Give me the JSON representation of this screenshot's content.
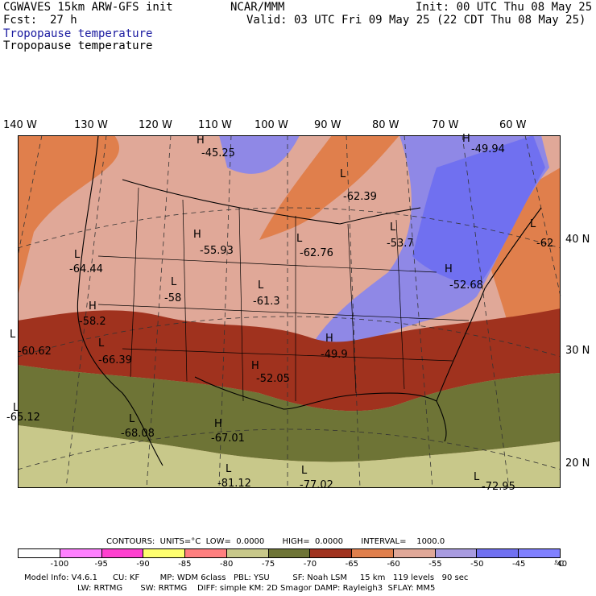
{
  "header": {
    "model": "CGWAVES 15km ARW-GFS init",
    "org": "NCAR/MMM",
    "init": "Init: 00 UTC Thu 08 May 25",
    "fcst_label": "Fcst:",
    "fcst_value": "27 h",
    "valid": "Valid: 03 UTC Fri 09 May 25 (22 CDT Thu 08 May 25)",
    "field_blue": "Tropopause temperature",
    "field_black": "Tropopause temperature"
  },
  "longitudes": [
    "140 W",
    "130 W",
    "120 W",
    "110 W",
    "100 W",
    "90 W",
    "80 W",
    "70 W",
    "60 W"
  ],
  "latitudes": [
    "40 N",
    "30 N",
    "20 N"
  ],
  "map_labels": [
    {
      "text": "H",
      "v": "-45.25"
    },
    {
      "text": "H",
      "v": "-49.94"
    },
    {
      "text": "L",
      "v": "-62.39"
    },
    {
      "text": "L",
      "v": "-64.44"
    },
    {
      "text": "H",
      "v": "-55.93"
    },
    {
      "text": "L",
      "v": "-62.76"
    },
    {
      "text": "L",
      "v": "-58"
    },
    {
      "text": "L",
      "v": "-61.3"
    },
    {
      "text": "H",
      "v": "-58.2"
    },
    {
      "text": "L",
      "v": "-60.62"
    },
    {
      "text": "L",
      "v": "-66.39"
    },
    {
      "text": "H",
      "v": "-49.9"
    },
    {
      "text": "H",
      "v": "-52.05"
    },
    {
      "text": "L",
      "v": "-68.08"
    },
    {
      "text": "H",
      "v": "-67.01"
    },
    {
      "text": "L",
      "v": "-81.12"
    },
    {
      "text": "L",
      "v": "-77.02"
    },
    {
      "text": "L",
      "v": "-72.95"
    },
    {
      "text": "H",
      "v": "-52.68"
    },
    {
      "text": "L",
      "v": "-62"
    },
    {
      "text": "L",
      "v": "-53.7"
    },
    {
      "text": "L",
      "v": "-65.12"
    }
  ],
  "contours": {
    "line": "CONTOURS:  UNITS=°C  LOW=  0.0000       HIGH=  0.0000       INTERVAL=    1000.0"
  },
  "colorbar": {
    "colors": [
      "#ffffff",
      "#ff80ff",
      "#ff40d0",
      "#ffff70",
      "#ff7f7f",
      "#c8c88a",
      "#6e7436",
      "#a0321e",
      "#e07f4c",
      "#e0a898",
      "#a89be0",
      "#7070f0",
      "#8080ff"
    ],
    "ticks": [
      "-100",
      "-95",
      "-90",
      "-85",
      "-80",
      "-75",
      "-70",
      "-65",
      "-60",
      "-55",
      "-50",
      "-45",
      "-40"
    ],
    "unit": "°C"
  },
  "model_info": {
    "line1": "Model Info: V4.6.1      CU: KF        MP: WDM 6class   PBL: YSU         SF: Noah LSM     15 km   119 levels   90 sec",
    "line2": "LW: RRTMG       SW: RRTMG    DIFF: simple KM: 2D Smagor DAMP: Rayleigh3  SFLAY: MM5"
  }
}
